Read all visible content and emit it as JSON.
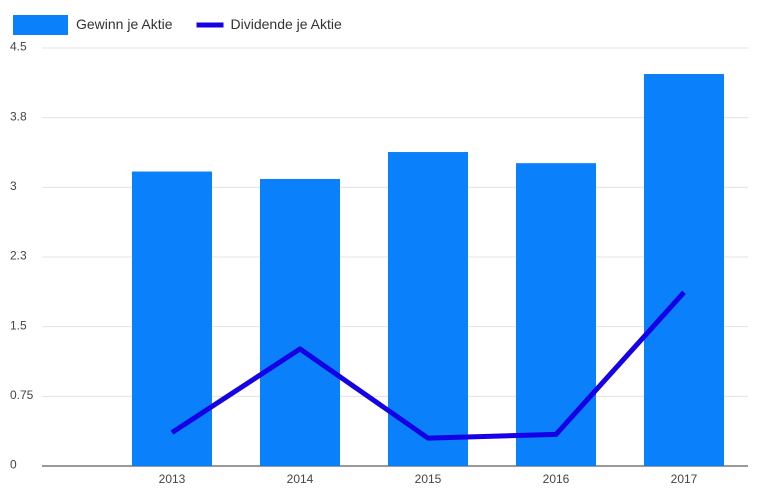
{
  "chart_data": {
    "type": "bar-line",
    "categories": [
      "2013",
      "2014",
      "2015",
      "2016",
      "2017"
    ],
    "series": [
      {
        "name": "Gewinn je Aktie",
        "type": "bar",
        "color": "#0a80fa",
        "values": [
          3.17,
          3.09,
          3.38,
          3.26,
          4.22
        ]
      },
      {
        "name": "Dividende je Aktie",
        "type": "line",
        "color": "#1600e6",
        "values": [
          0.36,
          1.26,
          0.3,
          0.34,
          1.87
        ]
      }
    ],
    "ylim": [
      0,
      4.5
    ],
    "yticks": [
      0,
      0.75,
      1.5,
      {
        "value": 2.25,
        "label": "2.3"
      },
      3,
      {
        "value": 3.75,
        "label": "3.8"
      },
      4.5
    ],
    "grid": true
  }
}
